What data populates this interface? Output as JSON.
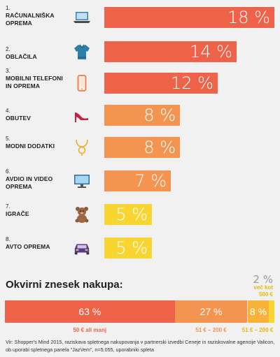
{
  "chart_data": {
    "type": "bar",
    "orientation": "horizontal",
    "categories": [
      {
        "num": "1.",
        "label": "RAČUNALNIŠKA OPREMA",
        "icon": "laptop-icon",
        "value": 18,
        "display": "18 %",
        "color": "#ee6249"
      },
      {
        "num": "2.",
        "label": "OBLAČILA",
        "icon": "sweater-icon",
        "value": 14,
        "display": "14 %",
        "color": "#ee6249"
      },
      {
        "num": "3.",
        "label": "MOBILNI TELEFONI IN OPREMA",
        "icon": "phone-icon",
        "value": 12,
        "display": "12 %",
        "color": "#ee6249"
      },
      {
        "num": "4.",
        "label": "OBUTEV",
        "icon": "high-heel-icon",
        "value": 8,
        "display": "8 %",
        "color": "#f39550"
      },
      {
        "num": "5.",
        "label": "MODNI DODATKI",
        "icon": "necklace-icon",
        "value": 8,
        "display": "8 %",
        "color": "#f39550"
      },
      {
        "num": "6.",
        "label": "AVDIO IN VIDEO OPREMA",
        "icon": "monitor-icon",
        "value": 7,
        "display": "7 %",
        "color": "#f39550"
      },
      {
        "num": "7.",
        "label": "IGRAČE",
        "icon": "teddy-bear-icon",
        "value": 5,
        "display": "5 %",
        "color": "#f8d530"
      },
      {
        "num": "8.",
        "label": "AVTO OPREMA",
        "icon": "car-icon",
        "value": 5,
        "display": "5 %",
        "color": "#f8d530"
      }
    ],
    "max": 18
  },
  "summary": {
    "title": "Okvirni znesek nakupa:",
    "segments": [
      {
        "value": 63,
        "display": "63 %",
        "caption": "50 € ali manj",
        "color": "#ee6249",
        "caption_color": "#ee6249"
      },
      {
        "value": 27,
        "display": "27 %",
        "caption": "51 € – 200 €",
        "color": "#f39550",
        "caption_color": "#f39550"
      },
      {
        "value": 8,
        "display": "8 %",
        "caption": "51 € – 200 €",
        "color": "#f8b23a",
        "caption_color": "#f0b400"
      },
      {
        "value": 2,
        "display": "2 %",
        "caption": "več kot 500 €",
        "color": "#f8d530",
        "caption_color": "#f0b400"
      }
    ]
  },
  "source": "Vir: Shopper's Mind 2015, raziskava spletnega nakupovanja v partnerski izvedbi Ceneje in raziskovalne agencije Valicon, ob uporabi spletnega panela \"JazVem\", n=5.055, uporabniki spleta"
}
